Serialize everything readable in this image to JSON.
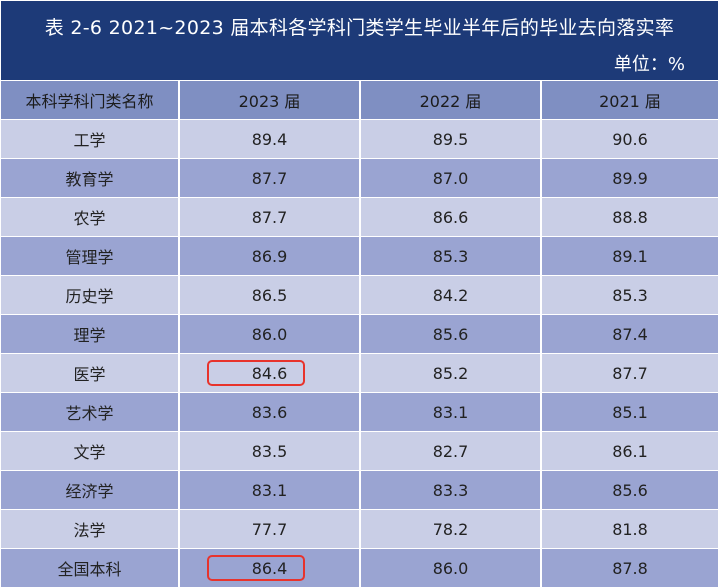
{
  "table": {
    "title": "表 2-6   2021~2023 届本科各学科门类学生毕业半年后的毕业去向落实率",
    "unit": "单位：%",
    "headers": [
      "本科学科门类名称",
      "2023 届",
      "2022 届",
      "2021 届"
    ],
    "rows": [
      {
        "name": "工学",
        "y2023": "89.4",
        "y2022": "89.5",
        "y2021": "90.6",
        "highlight_2023": false
      },
      {
        "name": "教育学",
        "y2023": "87.7",
        "y2022": "87.0",
        "y2021": "89.9",
        "highlight_2023": false
      },
      {
        "name": "农学",
        "y2023": "87.7",
        "y2022": "86.6",
        "y2021": "88.8",
        "highlight_2023": false
      },
      {
        "name": "管理学",
        "y2023": "86.9",
        "y2022": "85.3",
        "y2021": "89.1",
        "highlight_2023": false
      },
      {
        "name": "历史学",
        "y2023": "86.5",
        "y2022": "84.2",
        "y2021": "85.3",
        "highlight_2023": false
      },
      {
        "name": "理学",
        "y2023": "86.0",
        "y2022": "85.6",
        "y2021": "87.4",
        "highlight_2023": false
      },
      {
        "name": "医学",
        "y2023": "84.6",
        "y2022": "85.2",
        "y2021": "87.7",
        "highlight_2023": true
      },
      {
        "name": "艺术学",
        "y2023": "83.6",
        "y2022": "83.1",
        "y2021": "85.1",
        "highlight_2023": false
      },
      {
        "name": "文学",
        "y2023": "83.5",
        "y2022": "82.7",
        "y2021": "86.1",
        "highlight_2023": false
      },
      {
        "name": "经济学",
        "y2023": "83.1",
        "y2022": "83.3",
        "y2021": "85.6",
        "highlight_2023": false
      },
      {
        "name": "法学",
        "y2023": "77.7",
        "y2022": "78.2",
        "y2021": "81.8",
        "highlight_2023": false
      },
      {
        "name": "全国本科",
        "y2023": "86.4",
        "y2022": "86.0",
        "y2021": "87.8",
        "highlight_2023": true
      }
    ]
  },
  "colors": {
    "title_background": "#1d3a78",
    "header_background": "#7f8fc2",
    "row_light": "#c9cee6",
    "row_dark": "#9aa4d2",
    "highlight_border": "#e8332c"
  }
}
